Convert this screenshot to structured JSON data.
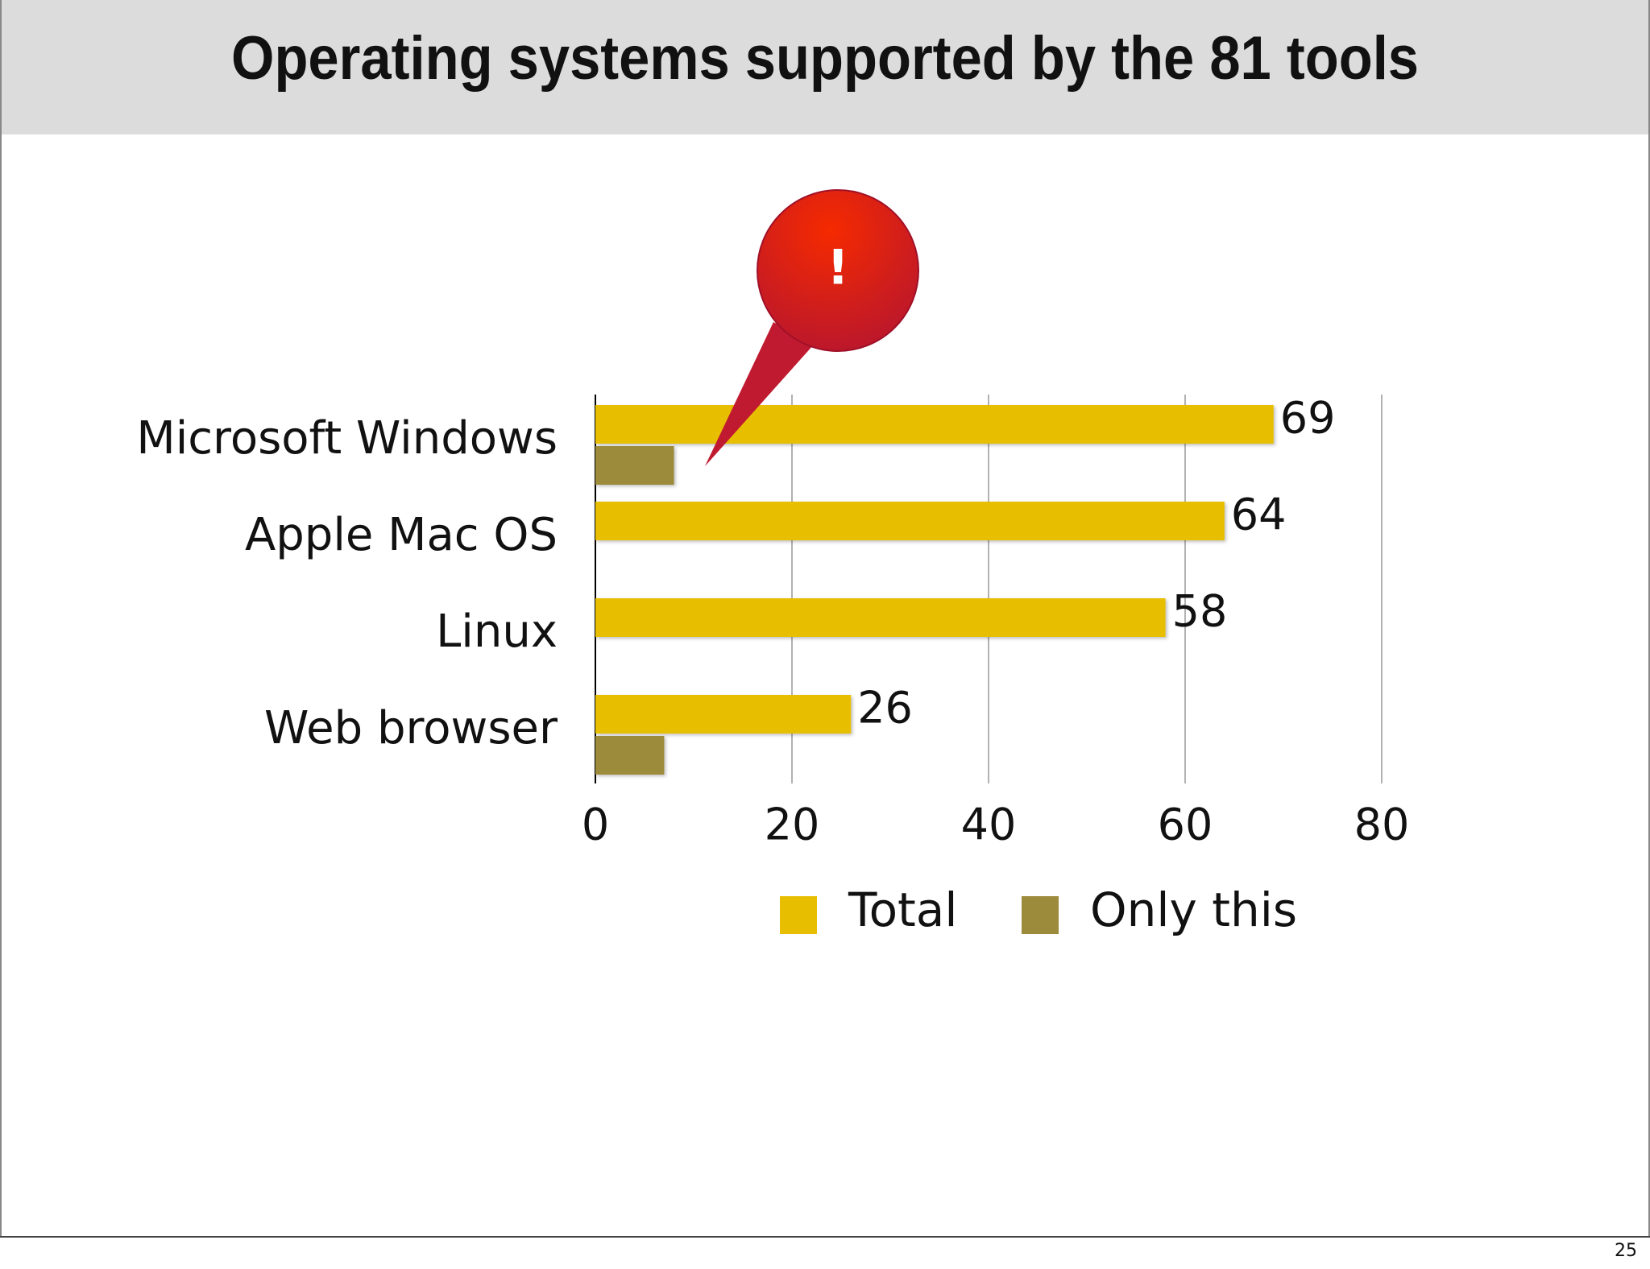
{
  "chart_data": {
    "type": "bar",
    "orientation": "horizontal",
    "title": "Operating systems supported by the 81 tools",
    "annotation": "!",
    "categories": [
      "Microsoft Windows",
      "Apple Mac OS",
      "Linux",
      "Web browser"
    ],
    "series": [
      {
        "name": "Total",
        "color": "#e8bf00",
        "values": [
          69,
          64,
          58,
          26
        ],
        "show_labels": true
      },
      {
        "name": "Only this",
        "color": "#9d8b3c",
        "values": [
          8,
          0,
          0,
          7
        ],
        "show_labels": false
      }
    ],
    "xlim": [
      0,
      80
    ],
    "xticks": [
      0,
      20,
      40,
      60,
      80
    ],
    "grid": true,
    "legend": "bottom"
  },
  "slide": {
    "page_number": "25"
  }
}
